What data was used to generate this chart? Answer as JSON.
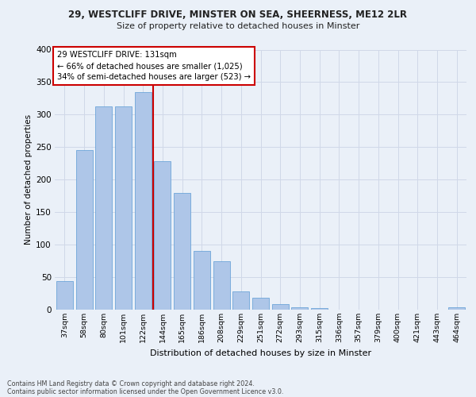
{
  "title_line1": "29, WESTCLIFF DRIVE, MINSTER ON SEA, SHEERNESS, ME12 2LR",
  "title_line2": "Size of property relative to detached houses in Minster",
  "xlabel": "Distribution of detached houses by size in Minster",
  "ylabel": "Number of detached properties",
  "footer_line1": "Contains HM Land Registry data © Crown copyright and database right 2024.",
  "footer_line2": "Contains public sector information licensed under the Open Government Licence v3.0.",
  "categories": [
    "37sqm",
    "58sqm",
    "80sqm",
    "101sqm",
    "122sqm",
    "144sqm",
    "165sqm",
    "186sqm",
    "208sqm",
    "229sqm",
    "251sqm",
    "272sqm",
    "293sqm",
    "315sqm",
    "336sqm",
    "357sqm",
    "379sqm",
    "400sqm",
    "421sqm",
    "443sqm",
    "464sqm"
  ],
  "heights": [
    44,
    245,
    313,
    313,
    335,
    228,
    180,
    90,
    75,
    28,
    18,
    9,
    4,
    3,
    0,
    0,
    0,
    0,
    0,
    0,
    4
  ],
  "annotation_text": "29 WESTCLIFF DRIVE: 131sqm\n← 66% of detached houses are smaller (1,025)\n34% of semi-detached houses are larger (523) →",
  "vline_x": 4.5,
  "bar_color": "#aec6e8",
  "bar_edge_color": "#5b9bd5",
  "vline_color": "#cc0000",
  "annotation_box_color": "#ffffff",
  "annotation_box_edge": "#cc0000",
  "grid_color": "#d0d8e8",
  "background_color": "#eaf0f8",
  "ylim": [
    0,
    400
  ],
  "yticks": [
    0,
    50,
    100,
    150,
    200,
    250,
    300,
    350,
    400
  ]
}
